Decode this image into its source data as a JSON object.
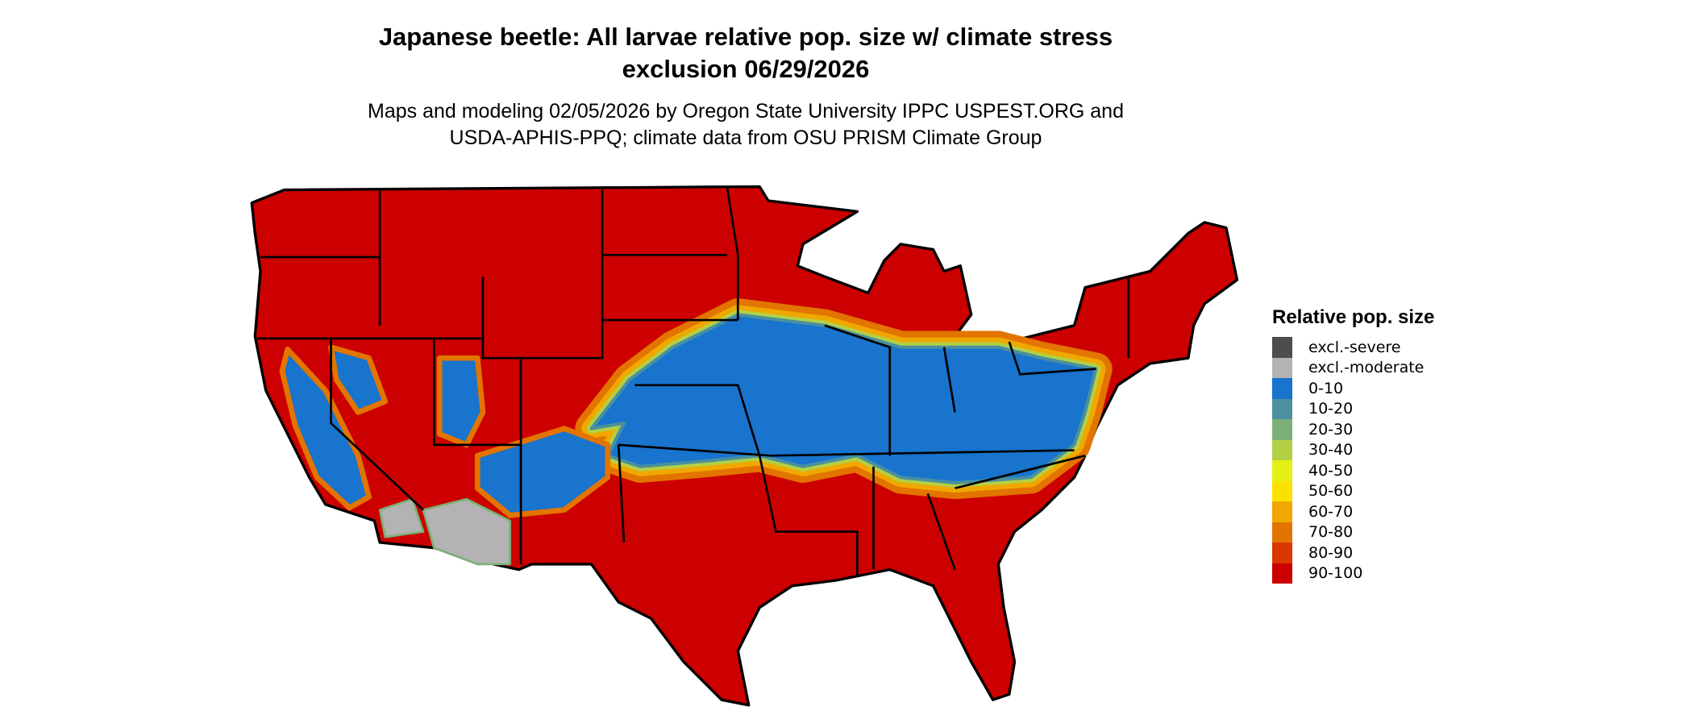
{
  "title_line1": "Japanese beetle: All larvae relative pop. size w/ climate stress",
  "title_line2": "exclusion 06/29/2026",
  "subtitle_line1": "Maps and modeling 02/05/2026 by Oregon State University IPPC USPEST.ORG and",
  "subtitle_line2": "USDA-APHIS-PPQ; climate data from OSU PRISM Climate Group",
  "legend": {
    "title": "Relative pop. size",
    "items": [
      {
        "label": "excl.-severe",
        "color": "#4d4d4d"
      },
      {
        "label": "excl.-moderate",
        "color": "#b3b3b3"
      },
      {
        "label": "0-10",
        "color": "#1874cd"
      },
      {
        "label": "10-20",
        "color": "#4a90a0"
      },
      {
        "label": "20-30",
        "color": "#7db077"
      },
      {
        "label": "30-40",
        "color": "#b3d045"
      },
      {
        "label": "40-50",
        "color": "#e5f016"
      },
      {
        "label": "50-60",
        "color": "#fae100"
      },
      {
        "label": "60-70",
        "color": "#f0a800"
      },
      {
        "label": "70-80",
        "color": "#e37400"
      },
      {
        "label": "80-90",
        "color": "#d93800"
      },
      {
        "label": "90-100",
        "color": "#cc0000"
      }
    ]
  }
}
